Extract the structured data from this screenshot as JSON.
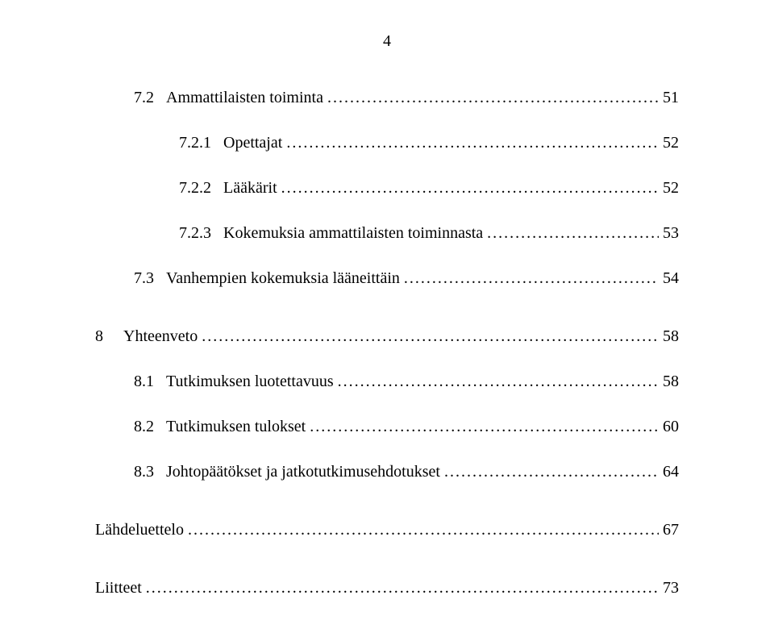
{
  "pageNumber": "4",
  "fontFamily": "Times New Roman",
  "fontSizePt": 15,
  "textColor": "#000000",
  "backgroundColor": "#ffffff",
  "leaderChar": ".",
  "entries": [
    {
      "indent": 1,
      "num": "7.2",
      "label": "Ammattilaisten toiminta",
      "page": "51",
      "extraGap": false
    },
    {
      "indent": 2,
      "num": "7.2.1",
      "label": "Opettajat",
      "page": "52",
      "extraGap": false
    },
    {
      "indent": 2,
      "num": "7.2.2",
      "label": "Lääkärit",
      "page": "52",
      "extraGap": false
    },
    {
      "indent": 2,
      "num": "7.2.3",
      "label": "Kokemuksia ammattilaisten toiminnasta",
      "page": "53",
      "extraGap": false
    },
    {
      "indent": 1,
      "num": "7.3",
      "label": "Vanhempien kokemuksia lääneittäin",
      "page": "54",
      "extraGap": true
    },
    {
      "indent": 0,
      "num": "8",
      "label": "Yhteenveto",
      "page": "58",
      "extraGap": false
    },
    {
      "indent": 1,
      "num": "8.1",
      "label": "Tutkimuksen luotettavuus",
      "page": "58",
      "extraGap": false
    },
    {
      "indent": 1,
      "num": "8.2",
      "label": "Tutkimuksen tulokset",
      "page": "60",
      "extraGap": false
    },
    {
      "indent": 1,
      "num": "8.3",
      "label": "Johtopäätökset ja jatkotutkimusehdotukset",
      "page": "64",
      "extraGap": true
    },
    {
      "indent": 0,
      "num": "",
      "label": "Lähdeluettelo",
      "page": "67",
      "extraGap": true
    },
    {
      "indent": 0,
      "num": "",
      "label": "Liitteet",
      "page": "73",
      "extraGap": false
    }
  ]
}
